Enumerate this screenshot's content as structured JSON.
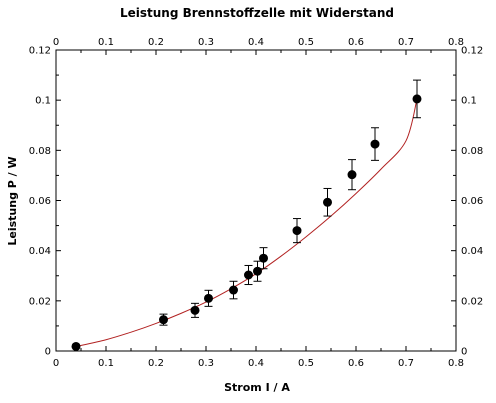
{
  "chart_data": {
    "type": "scatter",
    "title": "Leistung Brennstoffzelle mit Widerstand",
    "xlabel": "Strom I / A",
    "ylabel": "Leistung P / W",
    "xlim": [
      0,
      0.8
    ],
    "ylim": [
      0,
      0.12
    ],
    "xticks": [
      0,
      0.1,
      0.2,
      0.3,
      0.4,
      0.5,
      0.6,
      0.7,
      0.8
    ],
    "yticks": [
      0,
      0.02,
      0.04,
      0.06,
      0.08,
      0.1,
      0.12
    ],
    "grid": false,
    "mirror_axes": true,
    "series": [
      {
        "color": "#000000",
        "x": [
          0.04,
          0.215,
          0.278,
          0.305,
          0.355,
          0.385,
          0.403,
          0.415,
          0.482,
          0.543,
          0.592,
          0.638,
          0.722
        ],
        "y": [
          0.0018,
          0.0125,
          0.0162,
          0.021,
          0.0243,
          0.0303,
          0.0318,
          0.037,
          0.048,
          0.0593,
          0.0703,
          0.0825,
          0.1005
        ],
        "yerr": [
          0.0005,
          0.0022,
          0.0028,
          0.0032,
          0.0035,
          0.0038,
          0.004,
          0.0042,
          0.0048,
          0.0055,
          0.006,
          0.0065,
          0.0075
        ]
      }
    ],
    "fit": {
      "color": "#b22222",
      "x": [
        0.04,
        0.1,
        0.15,
        0.2,
        0.25,
        0.3,
        0.35,
        0.4,
        0.45,
        0.5,
        0.55,
        0.6,
        0.65,
        0.7,
        0.722
      ],
      "y": [
        0.0018,
        0.0045,
        0.0075,
        0.011,
        0.015,
        0.0195,
        0.0248,
        0.0308,
        0.0378,
        0.0455,
        0.0538,
        0.0628,
        0.0725,
        0.0838,
        0.1005
      ]
    }
  }
}
